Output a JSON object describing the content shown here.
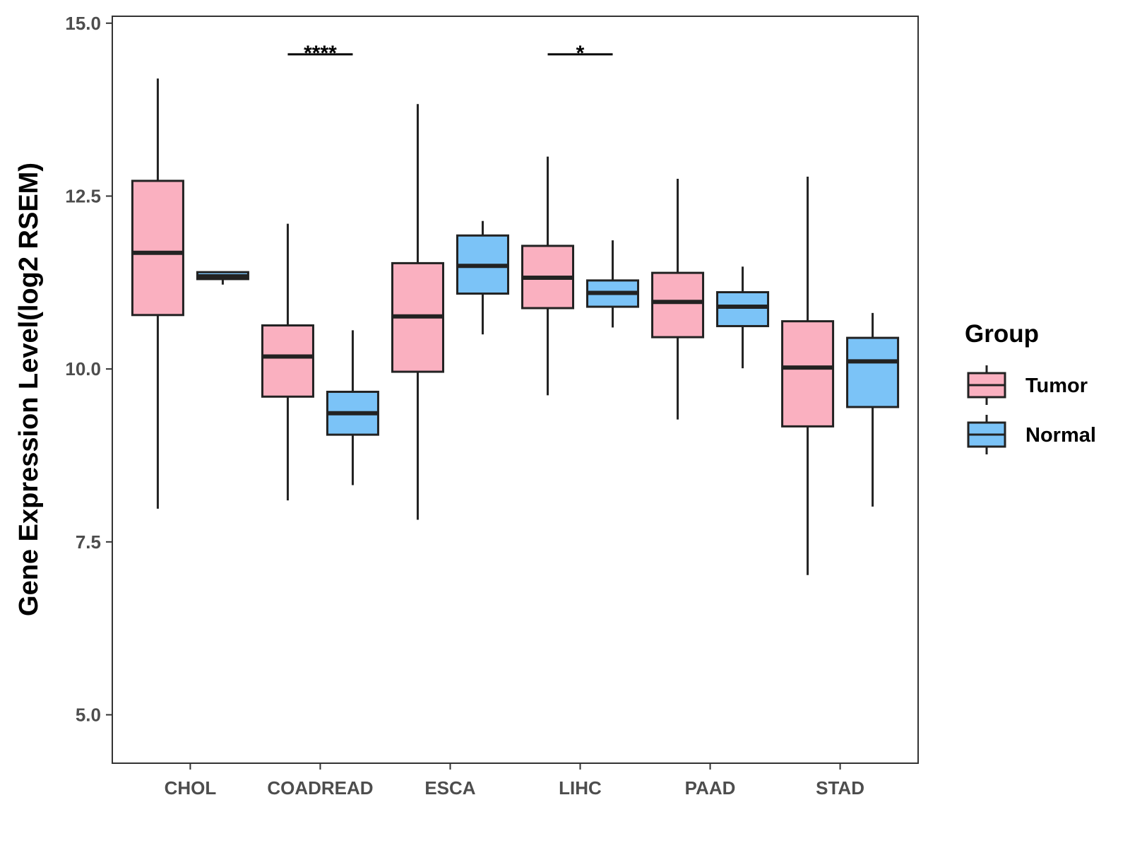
{
  "chart_data": {
    "type": "boxplot",
    "ylabel": "Gene Expression Level(log2 RSEM)",
    "xlabel": "",
    "ylim": [
      4.3,
      15.1
    ],
    "yticks": [
      5.0,
      7.5,
      10.0,
      12.5,
      15.0
    ],
    "ytick_labels": [
      "5.0",
      "7.5",
      "10.0",
      "12.5",
      "15.0"
    ],
    "categories": [
      "CHOL",
      "COADREAD",
      "ESCA",
      "LIHC",
      "PAAD",
      "STAD"
    ],
    "grid": false,
    "legend": {
      "title": "Group",
      "position": "right",
      "entries": [
        {
          "name": "Tumor",
          "color": "#FAB0C0"
        },
        {
          "name": "Normal",
          "color": "#7BC3F7"
        }
      ]
    },
    "series": [
      {
        "name": "Tumor",
        "color": "#FAB0C0",
        "boxes": [
          {
            "category": "CHOL",
            "min": 7.98,
            "q1": 10.78,
            "median": 11.68,
            "q3": 12.72,
            "max": 14.2
          },
          {
            "category": "COADREAD",
            "min": 8.1,
            "q1": 9.6,
            "median": 10.18,
            "q3": 10.63,
            "max": 12.1
          },
          {
            "category": "ESCA",
            "min": 7.82,
            "q1": 9.96,
            "median": 10.76,
            "q3": 11.53,
            "max": 13.83
          },
          {
            "category": "LIHC",
            "min": 9.62,
            "q1": 10.88,
            "median": 11.32,
            "q3": 11.78,
            "max": 13.07
          },
          {
            "category": "PAAD",
            "min": 9.27,
            "q1": 10.46,
            "median": 10.97,
            "q3": 11.39,
            "max": 12.75
          },
          {
            "category": "STAD",
            "min": 7.02,
            "q1": 9.17,
            "median": 10.02,
            "q3": 10.69,
            "max": 12.78
          }
        ]
      },
      {
        "name": "Normal",
        "color": "#7BC3F7",
        "boxes": [
          {
            "category": "CHOL",
            "min": 11.22,
            "q1": 11.3,
            "median": 11.34,
            "q3": 11.4,
            "max": 11.4
          },
          {
            "category": "COADREAD",
            "min": 8.32,
            "q1": 9.05,
            "median": 9.36,
            "q3": 9.67,
            "max": 10.56
          },
          {
            "category": "ESCA",
            "min": 10.5,
            "q1": 11.09,
            "median": 11.49,
            "q3": 11.93,
            "max": 12.14
          },
          {
            "category": "LIHC",
            "min": 10.6,
            "q1": 10.9,
            "median": 11.1,
            "q3": 11.28,
            "max": 11.86
          },
          {
            "category": "PAAD",
            "min": 10.01,
            "q1": 10.62,
            "median": 10.9,
            "q3": 11.11,
            "max": 11.48
          },
          {
            "category": "STAD",
            "min": 8.01,
            "q1": 9.45,
            "median": 10.11,
            "q3": 10.45,
            "max": 10.81
          }
        ]
      }
    ],
    "annotations": [
      {
        "category": "COADREAD",
        "label": "****",
        "y": 14.55
      },
      {
        "category": "LIHC",
        "label": "*",
        "y": 14.55
      }
    ]
  }
}
